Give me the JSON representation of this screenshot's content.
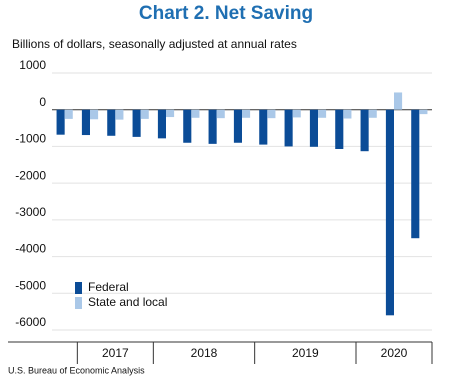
{
  "chart_data": {
    "type": "bar",
    "title": "Chart 2. Net Saving",
    "subtitle": "Billions of dollars, seasonally adjusted at annual rates",
    "source": "U.S. Bureau of Economic Analysis",
    "categories": [
      null,
      null,
      null,
      null,
      null,
      null,
      null,
      null,
      null,
      null,
      null,
      null,
      null,
      null,
      null
    ],
    "x_groups": [
      "2017",
      "2018",
      "2019",
      "2020"
    ],
    "series": [
      {
        "name": "Federal",
        "color": "#0b4c97",
        "values": [
          -680,
          -690,
          -710,
          -740,
          -780,
          -900,
          -930,
          -900,
          -950,
          -1000,
          -1010,
          -1070,
          -1130,
          -5600,
          -3500
        ]
      },
      {
        "name": "State and local",
        "color": "#aac8e8",
        "values": [
          -250,
          -260,
          -270,
          -250,
          -200,
          -220,
          -230,
          -220,
          -230,
          -210,
          -220,
          -240,
          -220,
          470,
          -120
        ]
      }
    ],
    "ylim": [
      1000,
      -6000
    ],
    "yticks": [
      1000,
      0,
      -1000,
      -2000,
      -3000,
      -4000,
      -5000,
      -6000
    ],
    "grid": true,
    "legend": "lower-left"
  }
}
